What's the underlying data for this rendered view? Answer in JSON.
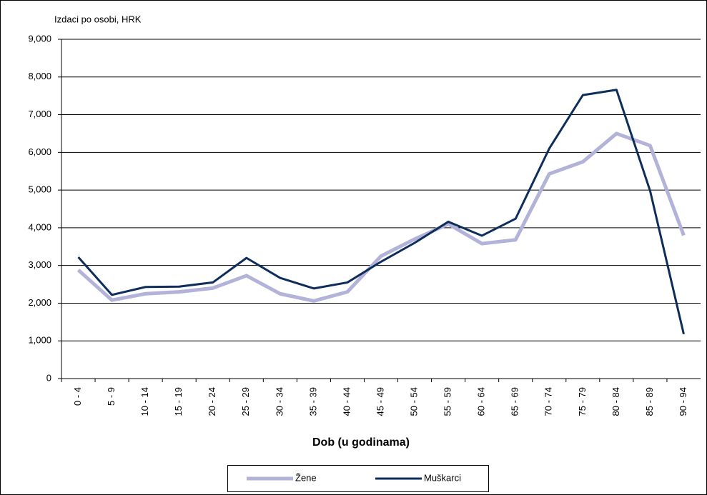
{
  "chart_data": {
    "type": "line",
    "y_axis_label": "Izdaci po osobi, HRK",
    "x_axis_label": "Dob (u godinama)",
    "categories": [
      "0 - 4",
      "5 - 9",
      "10 - 14",
      "15 - 19",
      "20 - 24",
      "25 - 29",
      "30 - 34",
      "35 - 39",
      "40 - 44",
      "45 - 49",
      "50 - 54",
      "55 - 59",
      "60 - 64",
      "65 - 69",
      "70 - 74",
      "75 - 79",
      "80 - 84",
      "85 - 89",
      "90 - 94"
    ],
    "series": [
      {
        "name": "Žene",
        "color": "#b3b3d9",
        "values": [
          2880,
          2080,
          2250,
          2300,
          2400,
          2730,
          2250,
          2060,
          2300,
          3250,
          3700,
          4100,
          3580,
          3680,
          5430,
          5750,
          6500,
          6180,
          3800
        ]
      },
      {
        "name": "Muškarci",
        "color": "#0d2d5b",
        "values": [
          3220,
          2220,
          2430,
          2440,
          2550,
          3200,
          2670,
          2390,
          2550,
          3100,
          3600,
          4160,
          3790,
          4240,
          6100,
          7520,
          7660,
          4980,
          1180
        ]
      }
    ],
    "ylim": [
      0,
      9000
    ],
    "yticks": [
      0,
      {
        "value": 1000,
        "label": "1,000"
      },
      {
        "value": 2000,
        "label": "2,000"
      },
      {
        "value": 3000,
        "label": "3,000"
      },
      {
        "value": 4000,
        "label": "4,000"
      },
      {
        "value": 5000,
        "label": "5,000"
      },
      {
        "value": 6000,
        "label": "6,000"
      },
      {
        "value": 7000,
        "label": "7,000"
      },
      {
        "value": 8000,
        "label": "8,000"
      },
      {
        "value": 9000,
        "label": "9,000"
      }
    ],
    "grid": true,
    "legend": "bottom"
  }
}
